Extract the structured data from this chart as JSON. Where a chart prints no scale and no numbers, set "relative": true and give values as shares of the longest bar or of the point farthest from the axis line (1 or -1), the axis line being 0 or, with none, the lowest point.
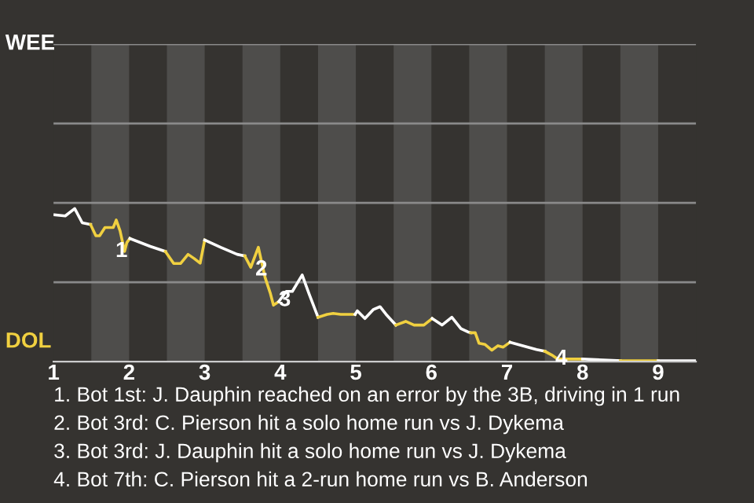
{
  "chart_data": {
    "type": "line",
    "relative": true,
    "xlim": [
      1,
      9.5
    ],
    "xticks": [
      1,
      2,
      3,
      4,
      5,
      6,
      7,
      8,
      9
    ],
    "grid": false,
    "legend": false,
    "marker": "none",
    "line_style": "solid",
    "ref_lines": [
      {
        "axis": "y",
        "value": 0.519,
        "color": "#8a8a8a"
      },
      {
        "axis": "y",
        "value": 1.037,
        "color": "#8a8a8a"
      },
      {
        "axis": "y",
        "value": 1.556,
        "color": "#8a8a8a"
      },
      {
        "axis": "y",
        "value": 2.075,
        "color": "#8a8a8a"
      }
    ],
    "bands": [
      {
        "axis": "x",
        "from": 1.5,
        "to": 2,
        "color": "#4e4d4b"
      },
      {
        "axis": "x",
        "from": 2.5,
        "to": 3,
        "color": "#4e4d4b"
      },
      {
        "axis": "x",
        "from": 3.5,
        "to": 4,
        "color": "#4e4d4b"
      },
      {
        "axis": "x",
        "from": 4.5,
        "to": 5,
        "color": "#4e4d4b"
      },
      {
        "axis": "x",
        "from": 5.5,
        "to": 6,
        "color": "#4e4d4b"
      },
      {
        "axis": "x",
        "from": 6.5,
        "to": 7,
        "color": "#4e4d4b"
      },
      {
        "axis": "x",
        "from": 7.5,
        "to": 8,
        "color": "#4e4d4b"
      },
      {
        "axis": "x",
        "from": 8.5,
        "to": 9,
        "color": "#4e4d4b"
      }
    ],
    "series": [
      {
        "color": "#ffffff",
        "x": [
          1.01,
          1.155,
          1.28,
          1.38,
          1.49
        ],
        "values": [
          0.959,
          0.952,
          1,
          0.907,
          0.896
        ]
      },
      {
        "color": "#f0d040",
        "x": [
          1.49,
          1.56,
          1.61,
          1.68,
          1.79,
          1.83,
          1.88,
          1.94,
          1.97,
          2.01
        ],
        "values": [
          0.896,
          0.822,
          0.822,
          0.876,
          0.876,
          0.925,
          0.855,
          0.72,
          0.778,
          0.805
        ]
      },
      {
        "color": "#ffffff",
        "x": [
          2.01,
          2.28,
          2.48
        ],
        "values": [
          0.805,
          0.753,
          0.72
        ]
      },
      {
        "color": "#f0d040",
        "x": [
          2.48,
          2.59,
          2.68,
          2.78,
          2.86,
          2.94,
          3.0
        ],
        "values": [
          0.72,
          0.641,
          0.641,
          0.701,
          0.674,
          0.643,
          0.795
        ]
      },
      {
        "color": "#ffffff",
        "x": [
          3.0,
          3.21,
          3.43,
          3.53
        ],
        "values": [
          0.795,
          0.747,
          0.701,
          0.691
        ]
      },
      {
        "color": "#f0d040",
        "x": [
          3.53,
          3.61,
          3.71,
          3.8,
          3.87,
          3.91,
          3.98
        ],
        "values": [
          0.691,
          0.616,
          0.747,
          0.548,
          0.444,
          0.369,
          0.392
        ]
      },
      {
        "color": "#ffffff",
        "x": [
          3.98,
          4.08,
          4.16,
          4.29,
          4.38,
          4.5
        ],
        "values": [
          0.392,
          0.459,
          0.459,
          0.566,
          0.444,
          0.29
        ]
      },
      {
        "color": "#f0d040",
        "x": [
          4.5,
          4.62,
          4.7,
          4.8,
          4.99
        ],
        "values": [
          0.29,
          0.309,
          0.315,
          0.309,
          0.309
        ]
      },
      {
        "color": "#ffffff",
        "x": [
          4.99,
          5.02,
          5.12,
          5.23,
          5.32,
          5.4,
          5.53
        ],
        "values": [
          0.309,
          0.332,
          0.282,
          0.34,
          0.359,
          0.309,
          0.239
        ]
      },
      {
        "color": "#f0d040",
        "x": [
          5.53,
          5.66,
          5.77,
          5.9,
          6.01
        ],
        "values": [
          0.239,
          0.263,
          0.239,
          0.239,
          0.282
        ]
      },
      {
        "color": "#ffffff",
        "x": [
          6.01,
          6.14,
          6.27,
          6.39,
          6.48,
          6.52
        ],
        "values": [
          0.282,
          0.239,
          0.29,
          0.216,
          0.195,
          0.189
        ]
      },
      {
        "color": "#f0d040",
        "x": [
          6.52,
          6.58,
          6.63,
          6.71,
          6.8,
          6.88,
          6.95,
          7.04
        ],
        "values": [
          0.189,
          0.189,
          0.12,
          0.112,
          0.075,
          0.104,
          0.095,
          0.127
        ]
      },
      {
        "color": "#ffffff",
        "x": [
          7.04,
          7.21,
          7.39,
          7.5
        ],
        "values": [
          0.127,
          0.104,
          0.079,
          0.068
        ]
      },
      {
        "color": "#f0d040",
        "x": [
          7.5,
          7.59,
          7.67,
          7.72,
          8.0
        ],
        "values": [
          0.068,
          0.044,
          0.017,
          0.017,
          0.017
        ]
      },
      {
        "color": "#ffffff",
        "x": [
          8.0,
          8.5
        ],
        "values": [
          0.017,
          0.006
        ]
      },
      {
        "color": "#f0d040",
        "x": [
          8.5,
          9.0
        ],
        "values": [
          0.006,
          0.006
        ]
      },
      {
        "color": "#ffffff",
        "x": [
          9.0,
          9.5
        ],
        "values": [
          0.006,
          0.006
        ]
      }
    ],
    "annotations": [
      {
        "text": "1",
        "x": 1.9,
        "y": 0.72
      },
      {
        "text": "2",
        "x": 3.75,
        "y": 0.6
      },
      {
        "text": "3",
        "x": 4.06,
        "y": 0.4
      },
      {
        "text": "4",
        "x": 7.72,
        "y": 0.017
      },
      "WEE",
      "DOL",
      "1. Bot 1st: J. Dauphin reached on an error by the 3B, driving in 1 run",
      "2. Bot 3rd: C. Pierson hit a solo home run vs J. Dykema",
      "3. Bot 3rd: J. Dauphin hit a solo home run vs J. Dykema",
      "4. Bot 7th: C. Pierson hit a 2-run home run vs B. Anderson"
    ]
  }
}
